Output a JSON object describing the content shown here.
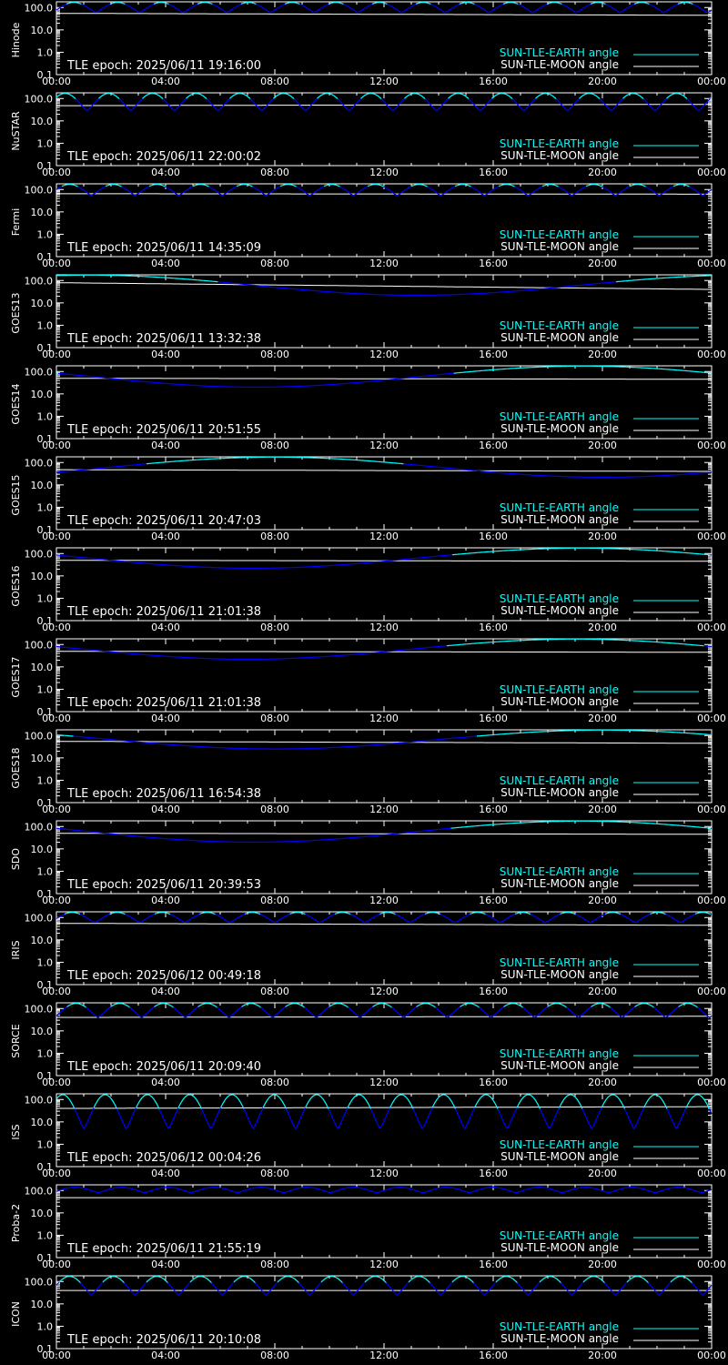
{
  "colors": {
    "background": "#000000",
    "axes": "#ffffff",
    "earth_series": "#00ffff",
    "earth_eclipse": "#0000ff",
    "moon_series": "#ffffff"
  },
  "legend": {
    "earth": "SUN-TLE-EARTH angle",
    "moon": "SUN-TLE-MOON angle"
  },
  "x_ticks": [
    "00:00",
    "04:00",
    "08:00",
    "12:00",
    "16:00",
    "20:00",
    "00:00"
  ],
  "y_ticks": [
    "0.1",
    "1.0",
    "10.0",
    "100.0"
  ],
  "chart_data": [
    {
      "type": "line",
      "ylabel": "Hinode",
      "epoch": "TLE epoch: 2025/06/11 19:16:00",
      "yscale": "log",
      "ylim": [
        0.1,
        180
      ],
      "xlim": [
        0,
        24
      ],
      "earth": {
        "kind": "orbit",
        "period_h": 1.6,
        "phase": 0.1,
        "max": 170,
        "min": 60
      },
      "moon": {
        "kind": "linear",
        "v0": 55,
        "v1": 45
      }
    },
    {
      "type": "line",
      "ylabel": "NuSTAR",
      "epoch": "TLE epoch: 2025/06/11 22:00:02",
      "yscale": "log",
      "ylim": [
        0.1,
        180
      ],
      "xlim": [
        0,
        24
      ],
      "earth": {
        "kind": "orbit",
        "period_h": 1.6,
        "phase": 0.3,
        "max": 170,
        "min": 28
      },
      "moon": {
        "kind": "linear",
        "v0": 48,
        "v1": 55
      }
    },
    {
      "type": "line",
      "ylabel": "Fermi",
      "epoch": "TLE epoch: 2025/06/11 14:35:09",
      "yscale": "log",
      "ylim": [
        0.1,
        180
      ],
      "xlim": [
        0,
        24
      ],
      "earth": {
        "kind": "orbit",
        "period_h": 1.6,
        "phase": 0.2,
        "max": 170,
        "min": 55
      },
      "moon": {
        "kind": "linear",
        "v0": 65,
        "v1": 62
      }
    },
    {
      "type": "line",
      "ylabel": "GOES13",
      "epoch": "TLE epoch: 2025/06/11 13:32:38",
      "yscale": "log",
      "ylim": [
        0.1,
        180
      ],
      "xlim": [
        0,
        24
      ],
      "earth": {
        "kind": "daily",
        "tmin": 13.2,
        "max": 175,
        "min": 22
      },
      "moon": {
        "kind": "linear",
        "v0": 80,
        "v1": 40
      }
    },
    {
      "type": "line",
      "ylabel": "GOES14",
      "epoch": "TLE epoch: 2025/06/11 20:51:55",
      "yscale": "log",
      "ylim": [
        0.1,
        180
      ],
      "xlim": [
        0,
        24
      ],
      "earth": {
        "kind": "daily",
        "tmin": 7.3,
        "max": 175,
        "min": 20
      },
      "moon": {
        "kind": "linear",
        "v0": 50,
        "v1": 45
      }
    },
    {
      "type": "line",
      "ylabel": "GOES15",
      "epoch": "TLE epoch: 2025/06/11 20:47:03",
      "yscale": "log",
      "ylim": [
        0.1,
        180
      ],
      "xlim": [
        0,
        24
      ],
      "earth": {
        "kind": "daily",
        "tmin": 20.0,
        "max": 175,
        "min": 22
      },
      "moon": {
        "kind": "linear",
        "v0": 48,
        "v1": 40
      }
    },
    {
      "type": "line",
      "ylabel": "GOES16",
      "epoch": "TLE epoch: 2025/06/11 21:01:38",
      "yscale": "log",
      "ylim": [
        0.1,
        180
      ],
      "xlim": [
        0,
        24
      ],
      "earth": {
        "kind": "daily",
        "tmin": 7.2,
        "max": 175,
        "min": 22
      },
      "moon": {
        "kind": "linear",
        "v0": 50,
        "v1": 45
      }
    },
    {
      "type": "line",
      "ylabel": "GOES17",
      "epoch": "TLE epoch: 2025/06/11 21:01:38",
      "yscale": "log",
      "ylim": [
        0.1,
        180
      ],
      "xlim": [
        0,
        24
      ],
      "earth": {
        "kind": "daily",
        "tmin": 7.0,
        "max": 175,
        "min": 22
      },
      "moon": {
        "kind": "linear",
        "v0": 50,
        "v1": 45
      }
    },
    {
      "type": "line",
      "ylabel": "GOES18",
      "epoch": "TLE epoch: 2025/06/11 16:54:38",
      "yscale": "log",
      "ylim": [
        0.1,
        180
      ],
      "xlim": [
        0,
        24
      ],
      "earth": {
        "kind": "daily",
        "tmin": 8.0,
        "max": 175,
        "min": 25
      },
      "moon": {
        "kind": "linear",
        "v0": 55,
        "v1": 45
      }
    },
    {
      "type": "line",
      "ylabel": "SDO",
      "epoch": "TLE epoch: 2025/06/11 20:39:53",
      "yscale": "log",
      "ylim": [
        0.1,
        180
      ],
      "xlim": [
        0,
        24
      ],
      "earth": {
        "kind": "daily",
        "tmin": 7.2,
        "max": 175,
        "min": 20
      },
      "moon": {
        "kind": "linear",
        "v0": 50,
        "v1": 45
      }
    },
    {
      "type": "line",
      "ylabel": "IRIS",
      "epoch": "TLE epoch: 2025/06/12 00:49:18",
      "yscale": "log",
      "ylim": [
        0.1,
        180
      ],
      "xlim": [
        0,
        24
      ],
      "earth": {
        "kind": "orbit",
        "period_h": 1.65,
        "phase": 0.15,
        "max": 170,
        "min": 60
      },
      "moon": {
        "kind": "linear",
        "v0": 55,
        "v1": 45
      }
    },
    {
      "type": "line",
      "ylabel": "SORCE",
      "epoch": "TLE epoch: 2025/06/11 20:09:40",
      "yscale": "log",
      "ylim": [
        0.1,
        180
      ],
      "xlim": [
        0,
        24
      ],
      "earth": {
        "kind": "orbit",
        "period_h": 1.6,
        "phase": 0.05,
        "max": 170,
        "min": 40
      },
      "moon": {
        "kind": "linear",
        "v0": 40,
        "v1": 45
      }
    },
    {
      "type": "line",
      "ylabel": "ISS",
      "epoch": "TLE epoch: 2025/06/12 00:04:26",
      "yscale": "log",
      "ylim": [
        0.1,
        180
      ],
      "xlim": [
        0,
        24
      ],
      "earth": {
        "kind": "orbit",
        "period_h": 1.55,
        "phase": 0.35,
        "max": 165,
        "min": 5
      },
      "moon": {
        "kind": "linear",
        "v0": 40,
        "v1": 48
      }
    },
    {
      "type": "line",
      "ylabel": "Proba-2",
      "epoch": "TLE epoch: 2025/06/11 21:55:19",
      "yscale": "log",
      "ylim": [
        0.1,
        180
      ],
      "xlim": [
        0,
        24
      ],
      "earth": {
        "kind": "orbit",
        "period_h": 1.7,
        "phase": 0.1,
        "max": 140,
        "min": 80
      },
      "moon": {
        "kind": "linear",
        "v0": 48,
        "v1": 48
      }
    },
    {
      "type": "line",
      "ylabel": "ICON",
      "epoch": "TLE epoch: 2025/06/11 20:10:08",
      "yscale": "log",
      "ylim": [
        0.1,
        180
      ],
      "xlim": [
        0,
        24
      ],
      "earth": {
        "kind": "orbit",
        "period_h": 1.6,
        "phase": 0.2,
        "max": 170,
        "min": 25
      },
      "moon": {
        "kind": "linear",
        "v0": 40,
        "v1": 40
      }
    }
  ]
}
